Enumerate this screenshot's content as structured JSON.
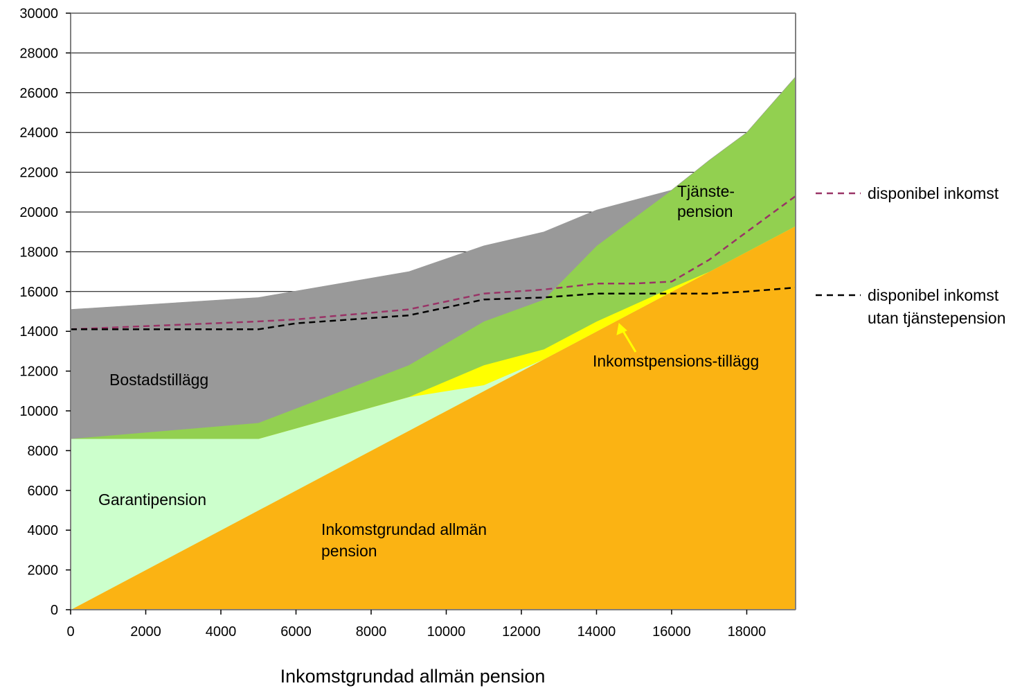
{
  "chart_data": {
    "type": "area",
    "xlabel": "Inkomstgrundad allmän pension",
    "ylabel": "",
    "xlim": [
      0,
      19300
    ],
    "ylim": [
      0,
      30000
    ],
    "x_ticks": [
      "0",
      "2000",
      "4000",
      "6000",
      "8000",
      "10000",
      "12000",
      "14000",
      "16000",
      "18000"
    ],
    "y_ticks": [
      "0",
      "2000",
      "4000",
      "6000",
      "8000",
      "10000",
      "12000",
      "14000",
      "16000",
      "18000",
      "20000",
      "22000",
      "24000",
      "26000",
      "28000",
      "30000"
    ],
    "grid": "horizontal",
    "x": [
      0,
      5000,
      9000,
      11000,
      12600,
      14000,
      16000,
      17000,
      18000,
      19300
    ],
    "series": [
      {
        "name": "Inkomstgrundad allmän pension",
        "color": "#fbb313",
        "values": [
          0,
          5000,
          9000,
          11000,
          12600,
          14000,
          16000,
          17000,
          18000,
          19300
        ]
      },
      {
        "name": "Garantipension",
        "color": "#ccffcc",
        "values": [
          8600,
          3600,
          1700,
          300,
          0,
          0,
          0,
          0,
          0,
          0
        ]
      },
      {
        "name": "Inkomstpensions-tillägg",
        "color": "#ffff00",
        "values": [
          0,
          0,
          0,
          1000,
          500,
          500,
          200,
          0,
          0,
          0
        ]
      },
      {
        "name": "Tjänste-pension",
        "color": "#92d050",
        "values": [
          0,
          800,
          1600,
          2200,
          2500,
          3800,
          4900,
          5600,
          6000,
          7500
        ]
      },
      {
        "name": "Bostadstillägg",
        "color": "#999999",
        "values": [
          6500,
          6300,
          4700,
          3800,
          3400,
          1800,
          0,
          0,
          0,
          0
        ]
      }
    ],
    "lines": [
      {
        "name": "disponibel inkomst",
        "color": "#993366",
        "style": "dashed",
        "x": [
          0,
          5000,
          6000,
          9000,
          11000,
          12600,
          14000,
          15000,
          16000,
          17000,
          18000,
          19300
        ],
        "values": [
          14100,
          14500,
          14600,
          15100,
          15900,
          16100,
          16400,
          16400,
          16500,
          17600,
          19000,
          20800
        ]
      },
      {
        "name": "disponibel inkomst utan tjänstepension",
        "color": "#000000",
        "style": "dashed",
        "x": [
          0,
          5000,
          6000,
          9000,
          10000,
          11000,
          12600,
          14000,
          15000,
          16000,
          17000,
          18000,
          19300
        ],
        "values": [
          14100,
          14100,
          14400,
          14800,
          15200,
          15600,
          15700,
          15900,
          15900,
          15900,
          15900,
          16000,
          16200
        ]
      }
    ],
    "area_labels": {
      "bostad": "Bostadstillägg",
      "garanti": "Garantipension",
      "inkomst_line1": "Inkomstgrundad allmän",
      "inkomst_line2": "pension",
      "tjanste_line1": "Tjänste-",
      "tjanste_line2": "pension",
      "tillagg": "Inkomstpensions-tillägg"
    },
    "legend": {
      "placement": "right",
      "disp_line1": "disponibel inkomst",
      "utan_line1": "disponibel inkomst",
      "utan_line2": "utan tjänstepension"
    },
    "colors": {
      "tillagg_label": "#ffff00",
      "grid": "#000000",
      "axis": "#808080"
    }
  }
}
